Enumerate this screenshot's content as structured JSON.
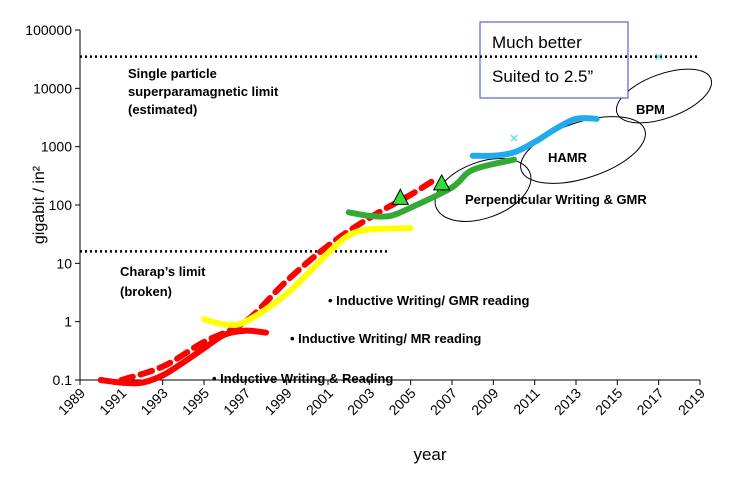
{
  "chart_data": {
    "type": "line",
    "x_label": "year",
    "y_label": "gigabit / in²",
    "xlim": [
      1989,
      2019
    ],
    "xticks": [
      1989,
      1991,
      1993,
      1995,
      1997,
      1999,
      2001,
      2003,
      2005,
      2007,
      2009,
      2011,
      2013,
      2015,
      2017,
      2019
    ],
    "ylim": [
      0.1,
      100000
    ],
    "yticks": [
      0.1,
      1,
      10,
      100,
      1000,
      10000,
      100000
    ],
    "log_scale": true,
    "series": [
      {
        "color": "#ff0000",
        "style": "solid",
        "x": [
          1990,
          1991,
          1992,
          1993,
          1994,
          1995,
          1996,
          1997,
          1998
        ],
        "values": [
          0.1,
          0.09,
          0.09,
          0.12,
          0.2,
          0.35,
          0.6,
          0.7,
          0.65
        ]
      },
      {
        "color": "#ff0000",
        "style": "dashed",
        "x": [
          1991,
          1993,
          1995,
          1997,
          1999,
          2001,
          2003,
          2005,
          2006
        ],
        "values": [
          0.1,
          0.17,
          0.45,
          1,
          5,
          20,
          60,
          150,
          250
        ]
      },
      {
        "color": "#ffff00",
        "style": "solid",
        "x": [
          1995,
          1996,
          1997,
          1999,
          2001,
          2002,
          2003,
          2005
        ],
        "values": [
          1.1,
          0.9,
          1,
          3,
          15,
          30,
          38,
          40
        ]
      },
      {
        "color": "#33aa33",
        "style": "solid",
        "x": [
          2002,
          2003,
          2004,
          2005,
          2007,
          2008,
          2010
        ],
        "values": [
          75,
          65,
          65,
          90,
          200,
          400,
          600
        ]
      },
      {
        "color": "#22aaee",
        "style": "solid",
        "x": [
          2008,
          2009,
          2010,
          2011,
          2012,
          2013,
          2014
        ],
        "values": [
          700,
          700,
          800,
          1200,
          2000,
          3000,
          3000
        ]
      }
    ],
    "reference_lines": [
      {
        "x": [
          1989,
          2019
        ],
        "y": 35000
      },
      {
        "x": [
          1989,
          2004
        ],
        "y": 16
      }
    ],
    "markers": [
      {
        "shape": "triangle",
        "color": "#33dd33",
        "x": 2004.5,
        "y": 130
      },
      {
        "shape": "triangle",
        "color": "#33dd33",
        "x": 2006.5,
        "y": 230
      },
      {
        "shape": "cross",
        "color": "#66dddd",
        "x": 2010,
        "y": 1400
      },
      {
        "shape": "cross",
        "color": "#66dddd",
        "x": 2017,
        "y": 35000
      }
    ],
    "annotations": [
      "Single particle",
      "superparamagnetic limit",
      "(estimated)",
      "Charap’s limit",
      "(broken)",
      "• Inductive Writing/ GMR reading",
      "• Inductive Writing/ MR reading",
      "• Inductive Writing & Reading",
      "Perpendicular Writing & GMR",
      "HAMR",
      "BPM"
    ],
    "box_text": [
      "Much better",
      "Suited to 2.5”"
    ]
  }
}
